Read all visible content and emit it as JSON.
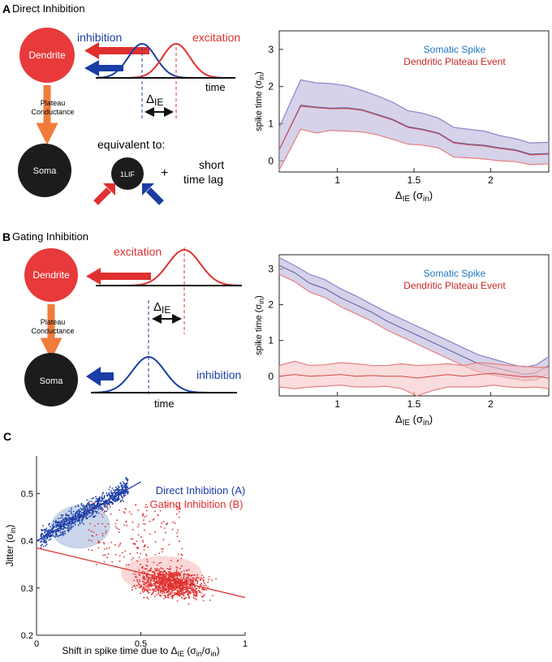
{
  "panelA": {
    "letter": "A",
    "title": "Direct Inhibition",
    "dendrite": "Dendrite",
    "plateau_line1": "Plateau",
    "plateau_line2": "Conductance",
    "soma": "Soma",
    "inhibition": "inhibition",
    "excitation": "excitation",
    "time": "time",
    "delta": "Δ",
    "delta_sub": "IE",
    "equivalent": "equivalent to:",
    "lif": "1LIF",
    "plus": "+",
    "short1": "short",
    "short2": "time lag"
  },
  "panelB": {
    "letter": "B",
    "title": "Gating Inhibition",
    "dendrite": "Dendrite",
    "plateau_line1": "Plateau",
    "plateau_line2": "Conductance",
    "soma": "Soma",
    "excitation": "excitation",
    "inhibition": "inhibition",
    "time": "time",
    "delta": "Δ",
    "delta_sub": "IE"
  },
  "panelC": {
    "letter": "C"
  },
  "colors": {
    "blue": "#1a3da6",
    "red": "#e03030",
    "somatic": "#1f78c8",
    "plateau": "#c82828",
    "arrow_orange": "#f07c3c",
    "dendrite_fill": "#e83a3a",
    "soma_fill": "#1c1c1c"
  },
  "chart_data": [
    {
      "type": "line",
      "id": "A",
      "title": "",
      "xlabel_main": "Δ",
      "xlabel_sub": "IE",
      "xlabel_paren": "(σ",
      "xlabel_paren_sub": "in",
      "xlabel_close": ")",
      "ylabel_main": "spike time (σ",
      "ylabel_sub": "in",
      "ylabel_close": ")",
      "xlim": [
        0.62,
        2.38
      ],
      "ylim": [
        -0.3,
        3.5
      ],
      "xticks": [
        "1",
        "1.5",
        "2"
      ],
      "xtick_values": [
        1,
        1.5,
        2
      ],
      "yticks": [
        "0",
        "1",
        "2",
        "3"
      ],
      "ytick_values": [
        0,
        1,
        2,
        3
      ],
      "legend": [
        "Somatic Spike",
        "Dendritic Plateau Event"
      ],
      "x": [
        0.62,
        0.76,
        0.86,
        0.96,
        1.06,
        1.16,
        1.26,
        1.36,
        1.46,
        1.56,
        1.66,
        1.76,
        1.86,
        1.96,
        2.06,
        2.16,
        2.26,
        2.38
      ],
      "series": [
        {
          "name": "Somatic Spike",
          "mean": [
            0.3,
            1.5,
            1.45,
            1.42,
            1.43,
            1.38,
            1.25,
            1.12,
            0.92,
            0.85,
            0.75,
            0.5,
            0.45,
            0.42,
            0.35,
            0.3,
            0.18,
            0.2
          ],
          "upper": [
            0.9,
            2.18,
            2.1,
            2.08,
            2.02,
            1.9,
            1.75,
            1.58,
            1.35,
            1.28,
            1.15,
            0.9,
            0.85,
            0.8,
            0.68,
            0.6,
            0.48,
            0.5
          ],
          "lower": [
            -0.25,
            0.85,
            0.75,
            0.82,
            0.8,
            0.78,
            0.7,
            0.58,
            0.45,
            0.42,
            0.35,
            0.1,
            0.08,
            0.05,
            0.0,
            -0.02,
            -0.1,
            -0.08
          ]
        },
        {
          "name": "Dendritic Plateau Event",
          "mean": [
            0.3,
            1.47,
            1.43,
            1.4,
            1.41,
            1.36,
            1.23,
            1.1,
            0.9,
            0.83,
            0.73,
            0.48,
            0.43,
            0.4,
            0.33,
            0.28,
            0.16,
            0.18
          ]
        }
      ]
    },
    {
      "type": "line",
      "id": "B",
      "xlabel_main": "Δ",
      "xlabel_sub": "IE",
      "xlabel_paren": "(σ",
      "xlabel_paren_sub": "in",
      "xlabel_close": ")",
      "ylabel_main": "spike time (σ",
      "ylabel_sub": "in",
      "ylabel_close": ")",
      "xlim": [
        0.62,
        2.38
      ],
      "ylim": [
        -0.55,
        3.4
      ],
      "xticks": [
        "1",
        "1.5",
        "2"
      ],
      "xtick_values": [
        1,
        1.5,
        2
      ],
      "yticks": [
        "0",
        "1",
        "2",
        "3"
      ],
      "ytick_values": [
        0,
        1,
        2,
        3
      ],
      "legend": [
        "Somatic Spike",
        "Dendritic Plateau Event"
      ],
      "x": [
        0.62,
        0.72,
        0.82,
        0.92,
        1.02,
        1.12,
        1.22,
        1.32,
        1.42,
        1.52,
        1.62,
        1.72,
        1.82,
        1.92,
        2.02,
        2.12,
        2.22,
        2.3,
        2.38
      ],
      "series": [
        {
          "name": "Somatic Spike",
          "mean": [
            3.1,
            2.9,
            2.6,
            2.45,
            2.2,
            2.0,
            1.8,
            1.55,
            1.35,
            1.15,
            0.95,
            0.75,
            0.55,
            0.35,
            0.25,
            0.15,
            0.05,
            0.1,
            0.3
          ],
          "upper": [
            3.32,
            3.1,
            2.85,
            2.7,
            2.45,
            2.25,
            2.02,
            1.8,
            1.6,
            1.4,
            1.2,
            1.0,
            0.8,
            0.6,
            0.48,
            0.35,
            0.25,
            0.32,
            0.55
          ],
          "lower": [
            2.85,
            2.65,
            2.35,
            2.2,
            1.95,
            1.75,
            1.55,
            1.3,
            1.1,
            0.9,
            0.7,
            0.5,
            0.3,
            0.12,
            0.03,
            -0.05,
            -0.12,
            -0.1,
            0.08
          ]
        },
        {
          "name": "Dendritic Plateau Event",
          "mean": [
            0.0,
            0.05,
            0.0,
            0.02,
            0.05,
            0.0,
            0.02,
            0.0,
            0.0,
            -0.05,
            0.0,
            0.05,
            0.0,
            0.05,
            0.08,
            0.03,
            -0.02,
            0.0,
            -0.05
          ],
          "upper": [
            0.3,
            0.42,
            0.3,
            0.32,
            0.38,
            0.35,
            0.3,
            0.3,
            0.35,
            0.3,
            0.32,
            0.35,
            0.3,
            0.38,
            0.35,
            0.3,
            0.28,
            0.25,
            0.25
          ],
          "lower": [
            -0.3,
            -0.35,
            -0.3,
            -0.28,
            -0.25,
            -0.3,
            -0.3,
            -0.28,
            -0.35,
            -0.55,
            -0.4,
            -0.3,
            -0.3,
            -0.3,
            -0.25,
            -0.3,
            -0.32,
            -0.3,
            -0.35
          ]
        }
      ]
    },
    {
      "type": "scatter",
      "id": "C",
      "xlabel_main": "Shift in spike time due to Δ",
      "xlabel_sub": "IE",
      "xlabel_paren": " (σ",
      "xlabel_paren_sub": "in",
      "xlabel_slash": "/σ",
      "xlabel_paren_sub2": "in",
      "xlabel_close": ")",
      "ylabel_main": "Jitter (σ",
      "ylabel_sub": "in",
      "ylabel_close": ")",
      "xlim": [
        0,
        1
      ],
      "ylim": [
        0.2,
        0.58
      ],
      "xticks": [
        "0",
        "0.5",
        "1"
      ],
      "xtick_values": [
        0,
        0.5,
        1
      ],
      "yticks": [
        "0.2",
        "0.3",
        "0.4",
        "0.5"
      ],
      "ytick_values": [
        0.2,
        0.3,
        0.4,
        0.5
      ],
      "legend": [
        "Direct Inhibition (A)",
        "Gating Inhibition (B)"
      ],
      "series": [
        {
          "name": "Direct Inhibition (A)",
          "cloud_center": [
            0.22,
            0.45
          ],
          "cloud_spread": [
            0.12,
            0.04
          ],
          "fit_start": [
            0,
            0.4
          ],
          "fit_end": [
            0.5,
            0.525
          ]
        },
        {
          "name": "Gating Inhibition (B)",
          "cloud_center": [
            0.65,
            0.31
          ],
          "cloud_spread": [
            0.16,
            0.03
          ],
          "fit_start": [
            0,
            0.385
          ],
          "fit_end": [
            1.0,
            0.28
          ]
        }
      ]
    }
  ]
}
